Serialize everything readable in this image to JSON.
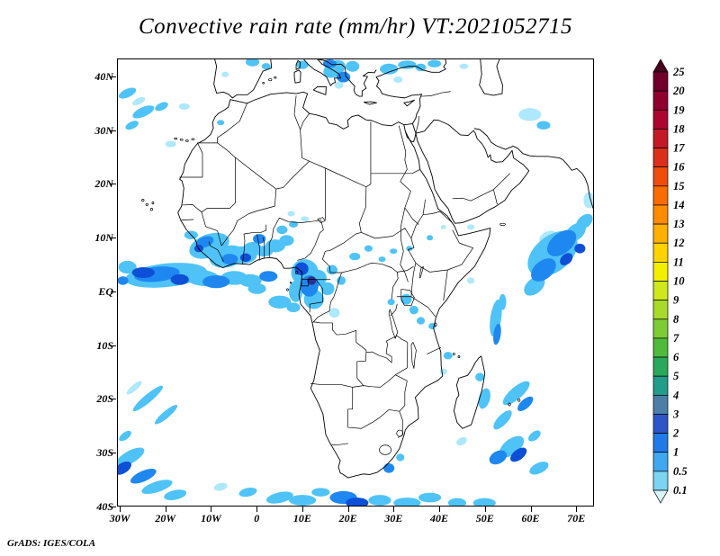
{
  "title": "Convective rain rate (mm/hr) VT:2021052715",
  "credit": "GrADS: IGES/COLA",
  "axes": {
    "lat": [
      {
        "label": "40N",
        "value": 40
      },
      {
        "label": "30N",
        "value": 30
      },
      {
        "label": "20N",
        "value": 20
      },
      {
        "label": "10N",
        "value": 10
      },
      {
        "label": "EQ",
        "value": 0
      },
      {
        "label": "10S",
        "value": -10
      },
      {
        "label": "20S",
        "value": -20
      },
      {
        "label": "30S",
        "value": -30
      },
      {
        "label": "40S",
        "value": -40
      }
    ],
    "lon": [
      {
        "label": "30W",
        "value": -30
      },
      {
        "label": "20W",
        "value": -20
      },
      {
        "label": "10W",
        "value": -10
      },
      {
        "label": "0",
        "value": 0
      },
      {
        "label": "10E",
        "value": 10
      },
      {
        "label": "20E",
        "value": 20
      },
      {
        "label": "30E",
        "value": 30
      },
      {
        "label": "40E",
        "value": 40
      },
      {
        "label": "50E",
        "value": 50
      },
      {
        "label": "60E",
        "value": 60
      },
      {
        "label": "70E",
        "value": 70
      }
    ]
  },
  "colorbar": {
    "labels": [
      "25",
      "20",
      "19",
      "18",
      "17",
      "16",
      "15",
      "14",
      "13",
      "12",
      "11",
      "10",
      "9",
      "8",
      "7",
      "6",
      "5",
      "4",
      "3",
      "2",
      "1",
      "0.5",
      "0.1"
    ],
    "colors": [
      "#4b0020",
      "#700029",
      "#8f0030",
      "#ad0430",
      "#c41a28",
      "#dc2f1b",
      "#ef4c0e",
      "#fa6b00",
      "#ff8c00",
      "#ffb000",
      "#ffd300",
      "#f4ef00",
      "#cfe81c",
      "#a8da2b",
      "#7dcb35",
      "#4fba3c",
      "#2aa95c",
      "#219d8a",
      "#4c7ea8",
      "#2e55c8",
      "#2279e8",
      "#3fa8f0",
      "#7cd4f2",
      "#d9f4fb"
    ]
  },
  "chart_data": {
    "type": "heatmap",
    "title": "Convective rain rate (mm/hr)",
    "valid_time": "2021052715",
    "units": "mm/hr",
    "projection": "latlon",
    "domain": {
      "lon_min": -30.6,
      "lon_max": 73.9,
      "lat_min": -40,
      "lat_max": 43.3
    },
    "levels": [
      0.1,
      0.5,
      1,
      2,
      3,
      4,
      5,
      6,
      7,
      8,
      9,
      10,
      11,
      12,
      13,
      14,
      15,
      16,
      17,
      18,
      19,
      20,
      25
    ],
    "legend_position": "right",
    "rain_palette": {
      "1": "#aee8fb",
      "2": "#4fc3f7",
      "3": "#1e88f0",
      "4": "#0d4fd6",
      "5": "#27348f"
    },
    "rain_cells": [
      [
        -10.5,
        8.5,
        4.5,
        2.2,
        -15,
        2
      ],
      [
        -11.5,
        9.2,
        2.0,
        1.0,
        -15,
        3
      ],
      [
        -12.8,
        8.0,
        1.0,
        0.7,
        0,
        4
      ],
      [
        -6.5,
        6.5,
        4.0,
        2.0,
        -10,
        2
      ],
      [
        -6.0,
        6.0,
        1.8,
        1.0,
        0,
        3
      ],
      [
        -3.0,
        6.8,
        3.0,
        1.6,
        0,
        2
      ],
      [
        -2.5,
        6.3,
        1.2,
        0.8,
        0,
        4
      ],
      [
        -1.0,
        8.0,
        2.0,
        1.2,
        0,
        2
      ],
      [
        1.5,
        7.5,
        2.0,
        1.0,
        0,
        2
      ],
      [
        0.5,
        9.8,
        1.4,
        0.9,
        0,
        3
      ],
      [
        4.0,
        8.5,
        2.2,
        1.2,
        0,
        2
      ],
      [
        6.5,
        9.5,
        1.6,
        1.0,
        0,
        2
      ],
      [
        5.5,
        11.5,
        1.2,
        0.8,
        0,
        2
      ],
      [
        8.0,
        12.5,
        1.0,
        0.6,
        0,
        2
      ],
      [
        -14.5,
        10.5,
        1.5,
        0.8,
        0,
        2
      ],
      [
        7.5,
        14.5,
        0.8,
        0.5,
        0,
        1
      ],
      [
        10.5,
        13.5,
        0.9,
        0.5,
        0,
        1
      ],
      [
        -20,
        3.0,
        9.0,
        2.2,
        -5,
        2
      ],
      [
        -22,
        3.2,
        5.0,
        1.4,
        -5,
        3
      ],
      [
        -25,
        3.5,
        2.5,
        1.0,
        0,
        4
      ],
      [
        -17,
        2.2,
        2.0,
        1.0,
        0,
        4
      ],
      [
        -12,
        2.5,
        4.0,
        1.5,
        5,
        2
      ],
      [
        -9,
        1.8,
        3.0,
        1.2,
        0,
        3
      ],
      [
        -28.5,
        4.5,
        2.0,
        1.2,
        0,
        2
      ],
      [
        -29.5,
        2.0,
        1.2,
        0.8,
        0,
        3
      ],
      [
        -5,
        2.5,
        3.0,
        1.3,
        0,
        2
      ],
      [
        -1.5,
        2.0,
        2.5,
        1.2,
        0,
        2
      ],
      [
        2.5,
        2.8,
        2.0,
        1.0,
        0,
        3
      ],
      [
        5,
        -2,
        2.5,
        1.2,
        0,
        2
      ],
      [
        8,
        -3,
        1.5,
        0.9,
        0,
        2
      ],
      [
        0,
        0.5,
        2.0,
        1.0,
        0,
        2
      ],
      [
        10.5,
        3.5,
        3.0,
        2.5,
        0,
        2
      ],
      [
        9.8,
        4.2,
        1.5,
        1.2,
        0,
        4
      ],
      [
        11.5,
        1.0,
        2.0,
        2.0,
        0,
        3
      ],
      [
        12.5,
        -1.5,
        2.2,
        1.8,
        0,
        2
      ],
      [
        13.5,
        2.5,
        1.8,
        1.5,
        0,
        2
      ],
      [
        15.5,
        0.5,
        1.5,
        1.2,
        0,
        2
      ],
      [
        12.0,
        2.0,
        1.0,
        0.8,
        0,
        5
      ],
      [
        8.5,
        0.0,
        1.5,
        2.0,
        0,
        2
      ],
      [
        16.5,
        4.0,
        1.2,
        0.9,
        0,
        2
      ],
      [
        18.5,
        2.0,
        1.0,
        0.8,
        0,
        2
      ],
      [
        17,
        -4,
        1.2,
        0.9,
        0,
        1
      ],
      [
        21.5,
        6.5,
        1.2,
        0.7,
        0,
        2
      ],
      [
        24.5,
        8.0,
        0.9,
        0.6,
        0,
        2
      ],
      [
        27.5,
        6.0,
        0.8,
        0.5,
        0,
        2
      ],
      [
        30.0,
        7.5,
        0.8,
        0.5,
        0,
        2
      ],
      [
        33.5,
        8.0,
        0.7,
        0.5,
        0,
        2
      ],
      [
        32.8,
        -1.5,
        1.2,
        1.0,
        0,
        2
      ],
      [
        34.5,
        -3.5,
        1.0,
        0.8,
        0,
        2
      ],
      [
        36.0,
        -5.5,
        0.9,
        0.7,
        0,
        2
      ],
      [
        38.5,
        -6.5,
        0.8,
        0.6,
        0,
        2
      ],
      [
        29.5,
        -2.0,
        0.8,
        0.6,
        0,
        2
      ],
      [
        38,
        10,
        0.7,
        0.5,
        0,
        2
      ],
      [
        41,
        12,
        0.6,
        0.4,
        0,
        1
      ],
      [
        47,
        12,
        0.8,
        0.5,
        0,
        1
      ],
      [
        47,
        2,
        0.8,
        0.6,
        0,
        1
      ],
      [
        17,
        41.5,
        2.5,
        1.5,
        -20,
        2
      ],
      [
        19,
        40,
        1.5,
        1.0,
        0,
        3
      ],
      [
        16,
        42.5,
        1.5,
        0.8,
        0,
        3
      ],
      [
        21,
        42,
        1.5,
        1.0,
        0,
        2
      ],
      [
        18,
        38.5,
        1.0,
        0.7,
        0,
        1
      ],
      [
        29,
        41.5,
        2.0,
        1.0,
        0,
        2
      ],
      [
        33,
        42.3,
        2.0,
        0.8,
        0,
        2
      ],
      [
        31,
        39.5,
        1.0,
        0.6,
        0,
        1
      ],
      [
        36,
        41.8,
        1.2,
        0.7,
        0,
        2
      ],
      [
        39,
        42.5,
        1.5,
        0.7,
        0,
        2
      ],
      [
        -1,
        42.8,
        1.5,
        0.8,
        0,
        2
      ],
      [
        2,
        42.0,
        1.0,
        0.6,
        0,
        2
      ],
      [
        10,
        42.3,
        1.3,
        0.8,
        0,
        2
      ],
      [
        45.5,
        42,
        1.0,
        0.5,
        0,
        1
      ],
      [
        -7,
        40.5,
        0.8,
        0.5,
        0,
        1
      ],
      [
        -25,
        33.5,
        2.5,
        0.9,
        -20,
        2
      ],
      [
        -27.5,
        31.0,
        1.5,
        0.7,
        -20,
        2
      ],
      [
        -21,
        34.5,
        1.5,
        0.7,
        -20,
        2
      ],
      [
        -19,
        27.5,
        1.2,
        0.6,
        0,
        1
      ],
      [
        -28.5,
        37,
        2.0,
        0.8,
        -20,
        2
      ],
      [
        -26,
        35.5,
        1.5,
        0.6,
        -20,
        1
      ],
      [
        -16,
        34.5,
        1.2,
        0.6,
        0,
        1
      ],
      [
        -8,
        31.5,
        0.8,
        0.5,
        0,
        2
      ],
      [
        65,
        7,
        6.0,
        3.5,
        -30,
        2
      ],
      [
        67,
        9,
        3.5,
        2.0,
        -30,
        3
      ],
      [
        70,
        11,
        2.5,
        1.5,
        -30,
        2
      ],
      [
        63,
        4,
        3.0,
        1.8,
        -30,
        3
      ],
      [
        61,
        1,
        2.5,
        1.5,
        -30,
        2
      ],
      [
        68,
        6,
        1.5,
        1.0,
        -30,
        4
      ],
      [
        72,
        13,
        2.0,
        1.2,
        -30,
        2
      ],
      [
        71,
        8,
        1.2,
        0.9,
        0,
        4
      ],
      [
        64,
        10,
        2.0,
        1.2,
        -20,
        1
      ],
      [
        73,
        17,
        1.2,
        1.5,
        0,
        1
      ],
      [
        60,
        33,
        2.5,
        1.2,
        0,
        1
      ],
      [
        63,
        31,
        1.5,
        0.8,
        0,
        2
      ],
      [
        52.5,
        -5,
        1.2,
        3.5,
        10,
        2
      ],
      [
        52.8,
        -8,
        0.8,
        2.0,
        10,
        3
      ],
      [
        54,
        -2,
        0.8,
        1.5,
        0,
        2
      ],
      [
        57,
        -19,
        3.5,
        1.2,
        -35,
        2
      ],
      [
        59,
        -21,
        2.0,
        0.9,
        -35,
        3
      ],
      [
        54,
        -24,
        2.5,
        1.0,
        -40,
        2
      ],
      [
        56,
        -29,
        3.0,
        1.5,
        -30,
        2
      ],
      [
        57.5,
        -30.5,
        2.0,
        1.0,
        -30,
        4
      ],
      [
        53,
        -31,
        2.0,
        1.2,
        -20,
        3
      ],
      [
        61,
        -27,
        1.5,
        0.8,
        -30,
        2
      ],
      [
        50,
        -20,
        1.2,
        2.0,
        20,
        2
      ],
      [
        62,
        -33,
        2.2,
        1.0,
        -20,
        2
      ],
      [
        49,
        -16,
        1.0,
        0.8,
        0,
        2
      ],
      [
        42,
        -12,
        1.0,
        0.7,
        0,
        2
      ],
      [
        41,
        -15,
        0.8,
        0.6,
        0,
        1
      ],
      [
        45,
        -28,
        1.2,
        0.7,
        -20,
        1
      ],
      [
        -24,
        -20,
        4.0,
        0.8,
        -35,
        2
      ],
      [
        -20,
        -23,
        3.0,
        0.7,
        -35,
        2
      ],
      [
        -27,
        -18,
        2.0,
        0.6,
        -35,
        1
      ],
      [
        -28,
        -31,
        3.5,
        1.2,
        -25,
        2
      ],
      [
        -29.5,
        -33,
        2.0,
        1.0,
        -25,
        4
      ],
      [
        -25,
        -34.5,
        3.0,
        1.0,
        -20,
        3
      ],
      [
        -22,
        -36.5,
        3.5,
        1.0,
        -15,
        2
      ],
      [
        -18,
        -38,
        2.5,
        0.9,
        -10,
        2
      ],
      [
        -29,
        -27,
        1.5,
        0.7,
        -30,
        2
      ],
      [
        5,
        -38.5,
        3.0,
        1.0,
        -10,
        2
      ],
      [
        10,
        -39,
        3.0,
        1.0,
        0,
        2
      ],
      [
        14,
        -37.5,
        2.0,
        0.8,
        0,
        2
      ],
      [
        19,
        -38.5,
        3.0,
        1.2,
        0,
        3
      ],
      [
        22,
        -39.5,
        2.5,
        1.0,
        0,
        4
      ],
      [
        27,
        -39,
        2.5,
        1.0,
        0,
        2
      ],
      [
        33,
        -39.5,
        3.0,
        1.0,
        0,
        2
      ],
      [
        38,
        -38.5,
        2.5,
        0.9,
        0,
        2
      ],
      [
        44,
        -39.5,
        2.0,
        0.9,
        0,
        2
      ],
      [
        50,
        -39.5,
        2.5,
        0.9,
        0,
        2
      ],
      [
        29,
        -33,
        1.2,
        0.9,
        0,
        3
      ],
      [
        31.5,
        -31,
        0.9,
        0.7,
        0,
        2
      ],
      [
        -2,
        -37.5,
        2.0,
        0.8,
        -10,
        2
      ],
      [
        -8,
        -36.5,
        1.5,
        0.7,
        -10,
        1
      ]
    ]
  }
}
